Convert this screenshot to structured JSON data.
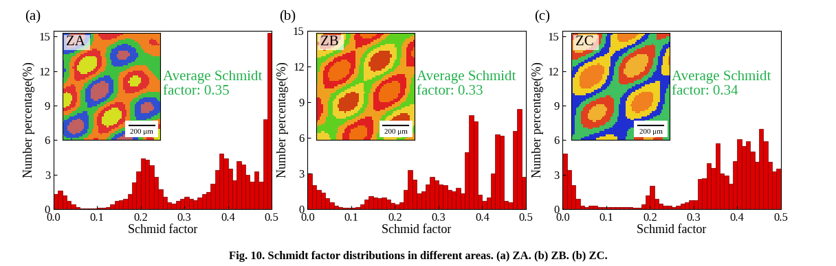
{
  "chart_data": [
    {
      "type": "histogram",
      "panel_label": "(a)",
      "inset_label": "ZA",
      "scale_bar": "200 μm",
      "annotation": "Average Schmidt\nfactor: 0.35",
      "x_label": "Schmid factor",
      "y_label": "Number percentage(%)",
      "color": "#dd0000",
      "bins": [
        0.0,
        0.01,
        0.02,
        0.03,
        0.04,
        0.05,
        0.06,
        0.07,
        0.08,
        0.09,
        0.1,
        0.11,
        0.12,
        0.13,
        0.14,
        0.15,
        0.16,
        0.17,
        0.18,
        0.19,
        0.2,
        0.21,
        0.22,
        0.23,
        0.24,
        0.25,
        0.26,
        0.27,
        0.28,
        0.29,
        0.3,
        0.31,
        0.32,
        0.33,
        0.34,
        0.35,
        0.36,
        0.37,
        0.38,
        0.39,
        0.4,
        0.41,
        0.42,
        0.43,
        0.44,
        0.45,
        0.46,
        0.47,
        0.48,
        0.49,
        0.5
      ],
      "counts": [
        1.3,
        1.6,
        1.2,
        0.7,
        0.4,
        0.15,
        0.05,
        0.05,
        0.05,
        0.05,
        0.1,
        0.1,
        0.2,
        0.4,
        0.7,
        0.8,
        0.9,
        1.3,
        2.3,
        3.3,
        4.4,
        4.3,
        3.8,
        2.8,
        1.7,
        1.1,
        0.6,
        0.5,
        0.7,
        0.9,
        1.1,
        0.9,
        0.8,
        1.0,
        1.3,
        1.5,
        2.2,
        3.4,
        4.8,
        4.4,
        3.5,
        2.5,
        4.2,
        3.9,
        3.0,
        2.4,
        3.3,
        2.4,
        7.8,
        15.3
      ],
      "xlim": [
        0.0,
        0.5
      ],
      "xticks": [
        0.0,
        0.1,
        0.2,
        0.3,
        0.4,
        0.5
      ],
      "ylim": [
        0,
        15.5
      ],
      "yticks": [
        0,
        3,
        6,
        9,
        12,
        15
      ]
    },
    {
      "type": "histogram",
      "panel_label": "(b)",
      "inset_label": "ZB",
      "scale_bar": "200 μm",
      "annotation": "Average Schmidt\nfactor: 0.33",
      "x_label": "Schmid factor",
      "y_label": "Number percentage(%)",
      "color": "#dd0000",
      "bins": [
        0.0,
        0.01,
        0.02,
        0.03,
        0.04,
        0.05,
        0.06,
        0.07,
        0.08,
        0.09,
        0.1,
        0.11,
        0.12,
        0.13,
        0.14,
        0.15,
        0.16,
        0.17,
        0.18,
        0.19,
        0.2,
        0.21,
        0.22,
        0.23,
        0.24,
        0.25,
        0.26,
        0.27,
        0.28,
        0.29,
        0.3,
        0.31,
        0.32,
        0.33,
        0.34,
        0.35,
        0.36,
        0.37,
        0.38,
        0.39,
        0.4,
        0.41,
        0.42,
        0.43,
        0.44,
        0.45,
        0.46,
        0.47,
        0.48,
        0.49,
        0.5
      ],
      "counts": [
        3.0,
        2.0,
        1.6,
        1.4,
        0.9,
        0.6,
        0.3,
        0.2,
        0.1,
        0.1,
        0.1,
        0.2,
        0.4,
        0.8,
        1.1,
        1.0,
        0.9,
        1.0,
        0.8,
        0.5,
        0.4,
        0.6,
        1.6,
        3.3,
        2.5,
        1.3,
        1.5,
        2.1,
        2.7,
        2.4,
        2.1,
        2.0,
        1.6,
        1.5,
        1.8,
        1.3,
        4.8,
        7.9,
        7.4,
        1.2,
        0.7,
        1.0,
        3.0,
        6.3,
        6.2,
        0.7,
        0.6,
        6.6,
        8.4,
        2.7
      ],
      "xlim": [
        0.0,
        0.5
      ],
      "xticks": [
        0.0,
        0.1,
        0.2,
        0.3,
        0.4,
        0.5
      ],
      "ylim": [
        0,
        15
      ],
      "yticks": [
        0,
        3,
        6,
        9,
        12,
        15
      ]
    },
    {
      "type": "histogram",
      "panel_label": "(c)",
      "inset_label": "ZC",
      "scale_bar": "200 μm",
      "annotation": "Average Schmidt\nfactor: 0.34",
      "x_label": "Schmid factor",
      "y_label": "Number percentage(%)",
      "color": "#dd0000",
      "bins": [
        0.0,
        0.01,
        0.02,
        0.03,
        0.04,
        0.05,
        0.06,
        0.07,
        0.08,
        0.09,
        0.1,
        0.11,
        0.12,
        0.13,
        0.14,
        0.15,
        0.16,
        0.17,
        0.18,
        0.19,
        0.2,
        0.21,
        0.22,
        0.23,
        0.24,
        0.25,
        0.26,
        0.27,
        0.28,
        0.29,
        0.3,
        0.31,
        0.32,
        0.33,
        0.34,
        0.35,
        0.36,
        0.37,
        0.38,
        0.39,
        0.4,
        0.41,
        0.42,
        0.43,
        0.44,
        0.45,
        0.46,
        0.47,
        0.48,
        0.49,
        0.5
      ],
      "counts": [
        4.8,
        3.4,
        2.1,
        0.9,
        0.3,
        0.2,
        0.3,
        0.3,
        0.2,
        0.2,
        0.2,
        0.2,
        0.2,
        0.2,
        0.2,
        0.15,
        0.1,
        0.1,
        0.4,
        1.2,
        2.0,
        0.9,
        0.5,
        0.3,
        0.3,
        0.2,
        0.3,
        0.5,
        0.6,
        0.8,
        0.8,
        2.6,
        2.7,
        4.0,
        3.6,
        5.7,
        3.1,
        2.9,
        2.2,
        4.2,
        6.1,
        5.5,
        5.9,
        5.0,
        4.1,
        7.0,
        5.9,
        4.1,
        3.3,
        3.5
      ],
      "xlim": [
        0.0,
        0.5
      ],
      "xticks": [
        0.0,
        0.1,
        0.2,
        0.3,
        0.4,
        0.5
      ],
      "ylim": [
        0,
        15.5
      ],
      "yticks": [
        0,
        3,
        6,
        9,
        12,
        15
      ]
    }
  ],
  "caption": "Fig. 10. Schmidt factor distributions in different areas. (a) ZA. (b) ZB. (b) ZC."
}
